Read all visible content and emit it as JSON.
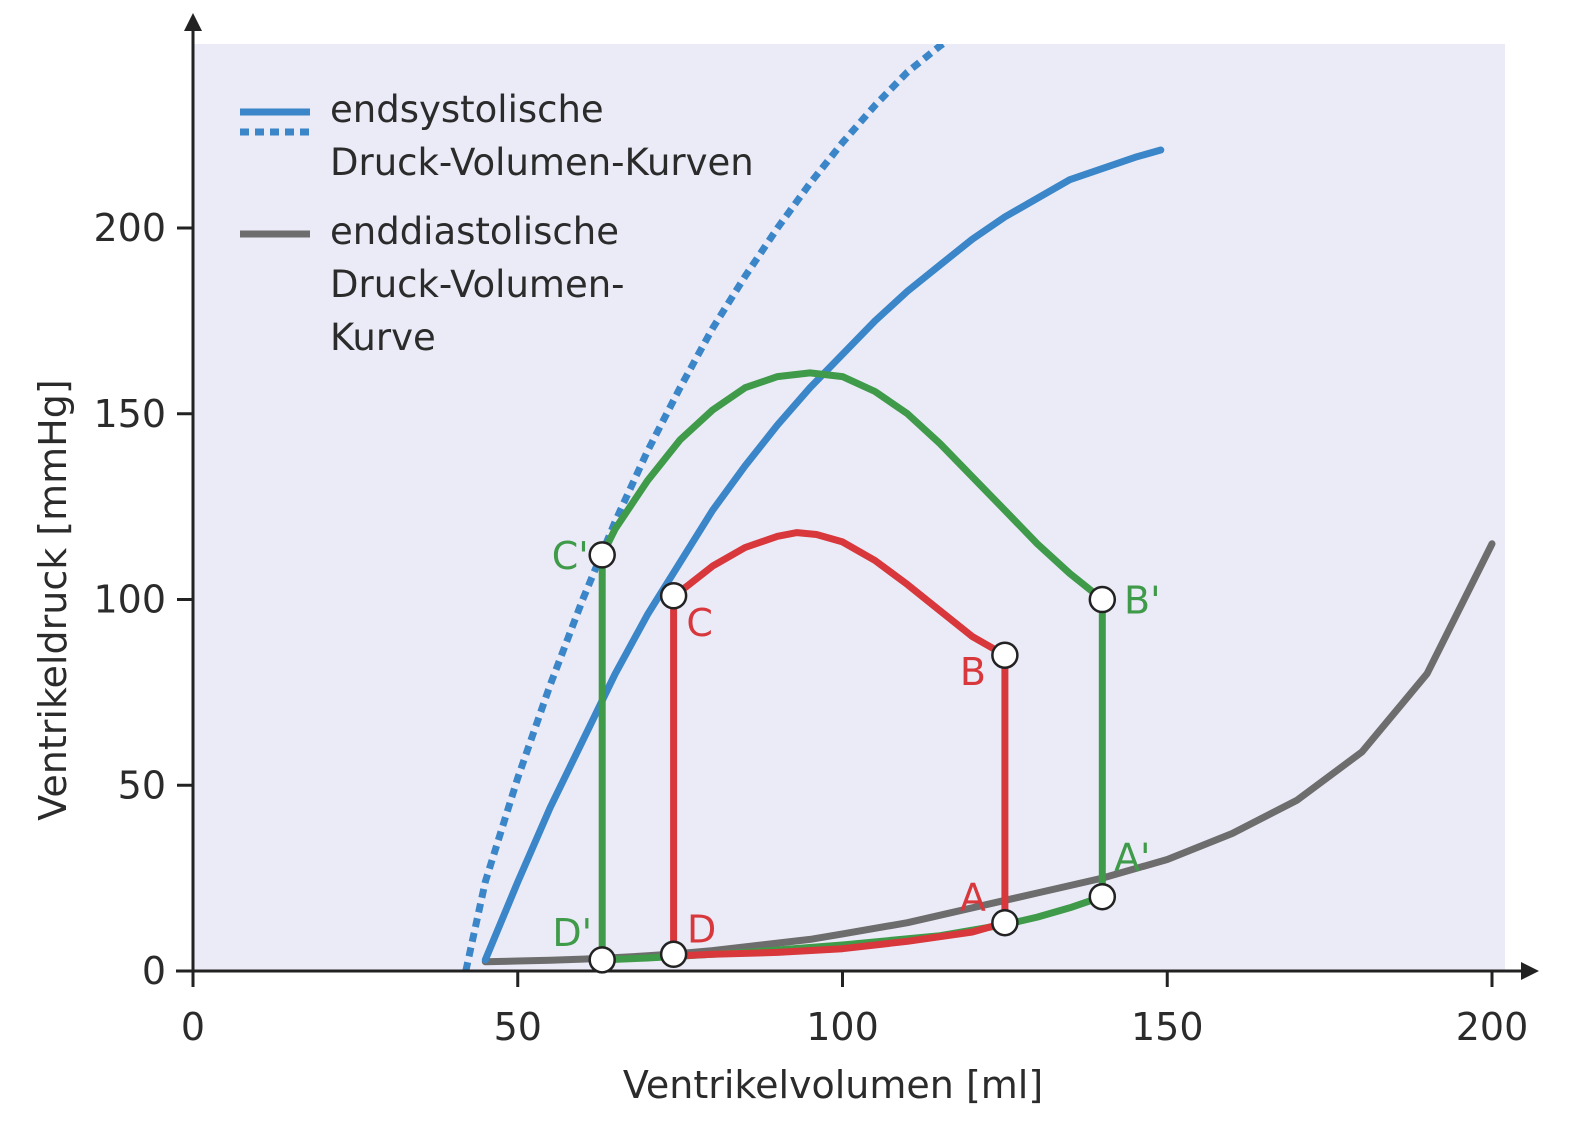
{
  "chart_data": {
    "type": "line",
    "xlabel": "Ventrikelvolumen [ml]",
    "ylabel": "Ventrikeldruck [mmHg]",
    "xlim": [
      0,
      200
    ],
    "ylim": [
      0,
      250
    ],
    "xticks": [
      0,
      50,
      100,
      150,
      200
    ],
    "yticks": [
      0,
      50,
      100,
      150,
      200
    ],
    "grid": false,
    "background": "#ebebf7",
    "legend": {
      "placement": "top-left",
      "entries": [
        {
          "text_lines": [
            "endsystolische",
            "Druck-Volumen-Kurven"
          ],
          "swatches": [
            "solid",
            "dotted"
          ],
          "color": "#3a86c8"
        },
        {
          "text_lines": [
            "enddiastolische",
            "Druck-Volumen-",
            "Kurve"
          ],
          "swatches": [
            "solid"
          ],
          "color": "#6d6d6d"
        }
      ]
    },
    "curves": [
      {
        "id": "esp-solid",
        "style": "solid",
        "color": "#3a86c8",
        "points": [
          [
            45,
            3
          ],
          [
            50,
            24
          ],
          [
            55,
            44
          ],
          [
            60,
            62
          ],
          [
            65,
            80
          ],
          [
            70,
            96
          ],
          [
            75,
            110
          ],
          [
            80,
            124
          ],
          [
            85,
            136
          ],
          [
            90,
            147
          ],
          [
            95,
            157
          ],
          [
            100,
            166
          ],
          [
            105,
            175
          ],
          [
            110,
            183
          ],
          [
            115,
            190
          ],
          [
            120,
            197
          ],
          [
            125,
            203
          ],
          [
            130,
            208
          ],
          [
            135,
            213
          ],
          [
            140,
            216
          ],
          [
            145,
            219
          ],
          [
            149,
            221
          ]
        ]
      },
      {
        "id": "esp-dotted",
        "style": "dotted",
        "color": "#3a86c8",
        "points": [
          [
            42,
            0
          ],
          [
            45,
            24
          ],
          [
            50,
            52
          ],
          [
            55,
            77
          ],
          [
            60,
            100
          ],
          [
            65,
            121
          ],
          [
            70,
            140
          ],
          [
            75,
            157
          ],
          [
            80,
            173
          ],
          [
            85,
            187
          ],
          [
            90,
            200
          ],
          [
            95,
            212
          ],
          [
            100,
            223
          ],
          [
            105,
            233
          ],
          [
            110,
            242
          ],
          [
            115,
            249
          ],
          [
            120,
            255
          ],
          [
            125,
            261
          ],
          [
            131,
            267
          ]
        ]
      },
      {
        "id": "edp",
        "style": "solid",
        "color": "#6d6d6d",
        "points": [
          [
            45,
            2.5
          ],
          [
            50,
            2.7
          ],
          [
            55,
            2.9
          ],
          [
            60,
            3.2
          ],
          [
            65,
            3.6
          ],
          [
            70,
            4.1
          ],
          [
            75,
            4.7
          ],
          [
            80,
            5.5
          ],
          [
            85,
            6.5
          ],
          [
            90,
            7.5
          ],
          [
            95,
            8.5
          ],
          [
            100,
            10
          ],
          [
            110,
            13
          ],
          [
            120,
            17
          ],
          [
            130,
            21
          ],
          [
            140,
            25
          ],
          [
            150,
            30
          ],
          [
            160,
            37
          ],
          [
            170,
            46
          ],
          [
            180,
            59
          ],
          [
            190,
            80
          ],
          [
            200,
            115
          ]
        ]
      },
      {
        "id": "loop-red",
        "style": "solid",
        "color": "#d8383c",
        "closed": true,
        "points": [
          [
            74,
            4
          ],
          [
            74,
            101
          ],
          [
            76,
            103.5
          ],
          [
            80,
            109
          ],
          [
            85,
            114
          ],
          [
            90,
            117
          ],
          [
            93,
            118
          ],
          [
            96,
            117.5
          ],
          [
            100,
            115.5
          ],
          [
            105,
            110.5
          ],
          [
            110,
            104
          ],
          [
            115,
            97
          ],
          [
            120,
            90
          ],
          [
            125,
            85
          ],
          [
            125,
            13
          ],
          [
            120,
            10.5
          ],
          [
            110,
            8
          ],
          [
            100,
            6
          ],
          [
            90,
            5
          ],
          [
            80,
            4.5
          ]
        ]
      },
      {
        "id": "loop-green",
        "style": "solid",
        "color": "#3f9a4a",
        "closed": true,
        "points": [
          [
            63,
            3
          ],
          [
            63,
            112
          ],
          [
            65,
            119
          ],
          [
            70,
            132
          ],
          [
            75,
            143
          ],
          [
            80,
            151
          ],
          [
            85,
            157
          ],
          [
            90,
            160
          ],
          [
            95,
            161
          ],
          [
            100,
            160
          ],
          [
            105,
            156
          ],
          [
            110,
            150
          ],
          [
            115,
            142
          ],
          [
            120,
            133
          ],
          [
            125,
            124
          ],
          [
            130,
            115
          ],
          [
            135,
            107
          ],
          [
            140,
            100
          ],
          [
            140,
            20
          ],
          [
            135,
            17
          ],
          [
            130,
            14.5
          ],
          [
            125,
            12.5
          ],
          [
            115,
            9.5
          ],
          [
            100,
            7
          ],
          [
            85,
            5
          ],
          [
            70,
            3.5
          ]
        ]
      }
    ],
    "points": [
      {
        "label": "A",
        "x": 125,
        "y": 13,
        "color": "#d8383c"
      },
      {
        "label": "B",
        "x": 125,
        "y": 85,
        "color": "#d8383c"
      },
      {
        "label": "C",
        "x": 74,
        "y": 101,
        "color": "#d8383c"
      },
      {
        "label": "D",
        "x": 74,
        "y": 4.5,
        "color": "#d8383c"
      },
      {
        "label": "A'",
        "x": 140,
        "y": 20,
        "color": "#3f9a4a"
      },
      {
        "label": "B'",
        "x": 140,
        "y": 100,
        "color": "#3f9a4a"
      },
      {
        "label": "C'",
        "x": 63,
        "y": 112,
        "color": "#3f9a4a"
      },
      {
        "label": "D'",
        "x": 63,
        "y": 3,
        "color": "#3f9a4a"
      }
    ]
  }
}
